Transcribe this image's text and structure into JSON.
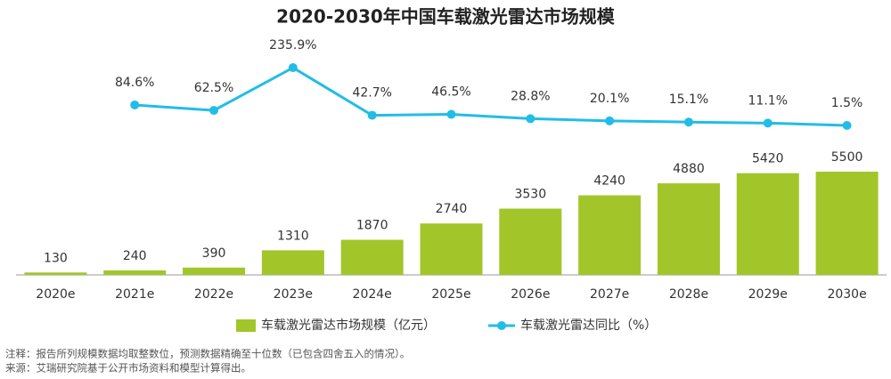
{
  "chart_data": {
    "type": "combo",
    "title": "2020-2030年中国车载激光雷达市场规模",
    "categories": [
      "2020e",
      "2021e",
      "2022e",
      "2023e",
      "2024e",
      "2025e",
      "2026e",
      "2027e",
      "2028e",
      "2029e",
      "2030e"
    ],
    "series": [
      {
        "name": "车载激光雷达市场规模（亿元）",
        "color": "#a2c62a",
        "values": [
          130,
          240,
          390,
          1310,
          1870,
          2740,
          3530,
          4240,
          4880,
          5420,
          5500
        ]
      },
      {
        "name": "车载激光雷达同比（%）",
        "color": "#22bde6",
        "axis": "y2",
        "values": [
          null,
          84.6,
          62.5,
          235.9,
          42.7,
          46.5,
          28.8,
          20.1,
          15.1,
          11.1,
          1.5
        ],
        "value_labels": [
          null,
          "84.6%",
          "62.5%",
          "235.9%",
          "42.7%",
          "46.5%",
          "28.8%",
          "20.1%",
          "15.1%",
          "11.1%",
          "1.5%"
        ]
      }
    ],
    "ylim": [
      0,
      12750
    ],
    "y2lim": [
      -605,
      366
    ],
    "notes": [
      "注释：报告所列规模数据均取整数位，预测数据精确至十位数（已包含四舍五入的情况）。",
      "来源：艾瑞研究院基于公开市场资料和模型计算得出。"
    ]
  }
}
